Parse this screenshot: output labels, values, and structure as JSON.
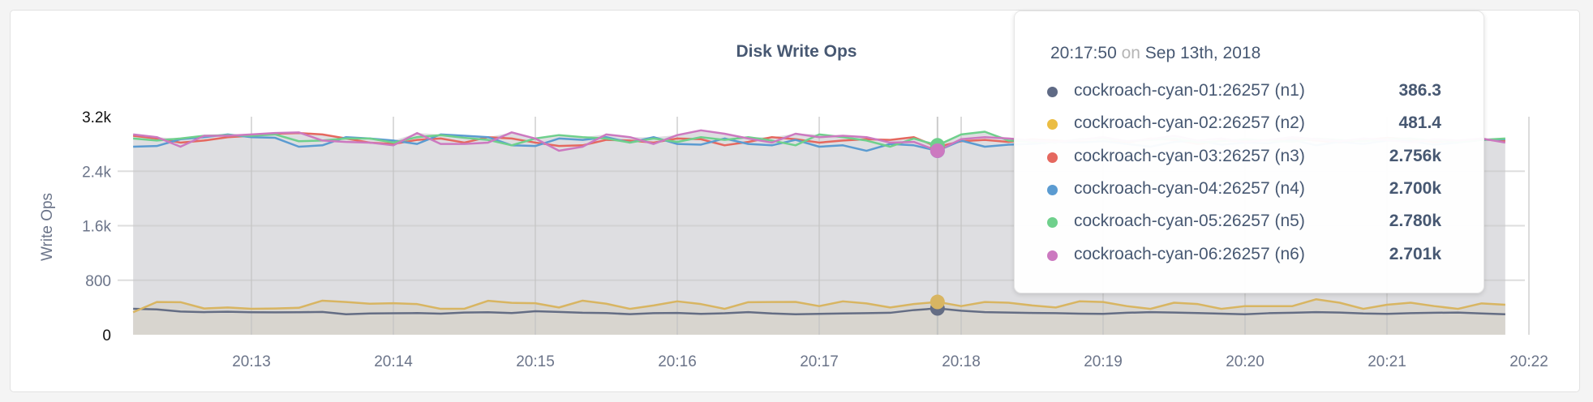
{
  "chart_data": {
    "type": "line",
    "title": "Disk Write Ops",
    "ylabel": "Write Ops",
    "ylim": [
      0,
      3200
    ],
    "yticks": [
      "0",
      "800",
      "1.6k",
      "2.4k",
      "3.2k"
    ],
    "ytick_values": [
      0,
      800,
      1600,
      2400,
      3200
    ],
    "xticks": [
      "20:13",
      "20:14",
      "20:15",
      "20:16",
      "20:17",
      "20:18",
      "20:19",
      "20:20",
      "20:21",
      "20:22"
    ],
    "grid": true,
    "x": [
      "20:12:10",
      "20:12:20",
      "20:12:30",
      "20:12:40",
      "20:12:50",
      "20:13:00",
      "20:13:10",
      "20:13:20",
      "20:13:30",
      "20:13:40",
      "20:13:50",
      "20:14:00",
      "20:14:10",
      "20:14:20",
      "20:14:30",
      "20:14:40",
      "20:14:50",
      "20:15:00",
      "20:15:10",
      "20:15:20",
      "20:15:30",
      "20:15:40",
      "20:15:50",
      "20:16:00",
      "20:16:10",
      "20:16:20",
      "20:16:30",
      "20:16:40",
      "20:16:50",
      "20:17:00",
      "20:17:10",
      "20:17:20",
      "20:17:30",
      "20:17:40",
      "20:17:50",
      "20:18:00",
      "20:18:10",
      "20:18:20",
      "20:18:30",
      "20:18:40",
      "20:18:50",
      "20:19:00",
      "20:19:10",
      "20:19:20",
      "20:19:30",
      "20:19:40",
      "20:19:50",
      "20:20:00",
      "20:20:10",
      "20:20:20",
      "20:20:30",
      "20:20:40",
      "20:20:50",
      "20:21:00",
      "20:21:10",
      "20:21:20",
      "20:21:30",
      "20:21:40",
      "20:21:50"
    ],
    "series": [
      {
        "name": "cockroach-cyan-01:26257 (n1)",
        "color": "#646d84",
        "values": [
          380,
          372,
          340,
          332,
          338,
          330,
          328,
          330,
          335,
          300,
          312,
          315,
          318,
          310,
          325,
          330,
          318,
          345,
          335,
          322,
          318,
          302,
          316,
          320,
          306,
          315,
          332,
          312,
          300,
          306,
          312,
          316,
          322,
          362,
          386.3,
          352,
          332,
          326,
          320,
          316,
          310,
          306,
          322,
          332,
          326,
          318,
          310,
          300,
          316,
          322,
          332,
          326,
          312,
          306,
          316,
          322,
          326,
          312,
          300
        ]
      },
      {
        "name": "cockroach-cyan-02:26257 (n2)",
        "color": "#d8b562",
        "values": [
          330,
          480,
          478,
          385,
          400,
          380,
          385,
          395,
          500,
          480,
          455,
          462,
          450,
          380,
          382,
          498,
          468,
          462,
          400,
          500,
          455,
          380,
          430,
          490,
          450,
          380,
          478,
          480,
          482,
          420,
          490,
          460,
          400,
          450,
          481.4,
          420,
          480,
          470,
          430,
          400,
          490,
          480,
          420,
          380,
          470,
          450,
          380,
          420,
          420,
          420,
          520,
          470,
          380,
          440,
          470,
          420,
          380,
          460,
          440
        ]
      },
      {
        "name": "cockroach-cyan-03:26257 (n3)",
        "color": "#e5685f",
        "values": [
          2920,
          2880,
          2820,
          2850,
          2900,
          2920,
          2950,
          2960,
          2940,
          2880,
          2820,
          2800,
          2860,
          2880,
          2820,
          2900,
          2880,
          2820,
          2770,
          2780,
          2860,
          2850,
          2820,
          2880,
          2870,
          2780,
          2830,
          2900,
          2870,
          2820,
          2850,
          2870,
          2860,
          2900,
          2756,
          2840,
          2860,
          2830,
          2870,
          2850,
          2830,
          2840,
          2820,
          2880,
          2860,
          2800,
          2850,
          2840,
          2860,
          2880,
          2850,
          2820,
          2860,
          2890,
          2870,
          2830,
          2850,
          2870,
          2840
        ]
      },
      {
        "name": "cockroach-cyan-04:26257 (n4)",
        "color": "#5b9bd1",
        "values": [
          2760,
          2770,
          2870,
          2900,
          2940,
          2900,
          2890,
          2760,
          2780,
          2900,
          2880,
          2850,
          2800,
          2940,
          2920,
          2900,
          2780,
          2770,
          2880,
          2860,
          2900,
          2820,
          2900,
          2800,
          2790,
          2880,
          2800,
          2780,
          2860,
          2760,
          2780,
          2700,
          2800,
          2780,
          2700,
          2850,
          2760,
          2790,
          2800,
          2830,
          2820,
          2840,
          2800,
          2760,
          2830,
          2850,
          2790,
          2820,
          2810,
          2860,
          2780,
          2830,
          2800,
          2850,
          2840,
          2790,
          2820,
          2860,
          2870
        ]
      },
      {
        "name": "cockroach-cyan-05:26257 (n5)",
        "color": "#6fd08c",
        "values": [
          2880,
          2850,
          2880,
          2920,
          2930,
          2920,
          2940,
          2840,
          2850,
          2880,
          2880,
          2820,
          2900,
          2930,
          2890,
          2860,
          2780,
          2880,
          2930,
          2900,
          2880,
          2820,
          2880,
          2830,
          2900,
          2860,
          2900,
          2850,
          2780,
          2940,
          2900,
          2850,
          2760,
          2880,
          2780,
          2940,
          2980,
          2850,
          2830,
          2820,
          2870,
          2880,
          2840,
          2860,
          2880,
          2820,
          2840,
          2870,
          2850,
          2830,
          2880,
          2860,
          2840,
          2870,
          2880,
          2850,
          2830,
          2860,
          2880
        ]
      },
      {
        "name": "cockroach-cyan-06:26257 (n6)",
        "color": "#cc79c0",
        "values": [
          2940,
          2900,
          2760,
          2920,
          2920,
          2940,
          2960,
          2970,
          2850,
          2830,
          2820,
          2780,
          2960,
          2800,
          2800,
          2820,
          2970,
          2880,
          2700,
          2760,
          2940,
          2900,
          2800,
          2930,
          3000,
          2950,
          2880,
          2820,
          2950,
          2900,
          2920,
          2900,
          2820,
          2830,
          2701,
          2870,
          2900,
          2880,
          2850,
          2830,
          2860,
          2900,
          2840,
          2870,
          2920,
          2850,
          2880,
          2830,
          2860,
          2900,
          2870,
          2840,
          2880,
          2860,
          2820,
          2870,
          2850,
          2880,
          2820
        ]
      }
    ],
    "hover_x": "20:17:50"
  },
  "tooltip": {
    "time": "20:17:50",
    "on": "on",
    "date": "Sep 13th, 2018",
    "rows": [
      {
        "name": "cockroach-cyan-01:26257 (n1)",
        "value": "386.3",
        "color": "#5f6a85"
      },
      {
        "name": "cockroach-cyan-02:26257 (n2)",
        "value": "481.4",
        "color": "#ebbd43"
      },
      {
        "name": "cockroach-cyan-03:26257 (n3)",
        "value": "2.756k",
        "color": "#e5685f"
      },
      {
        "name": "cockroach-cyan-04:26257 (n4)",
        "value": "2.700k",
        "color": "#5b9bd1"
      },
      {
        "name": "cockroach-cyan-05:26257 (n5)",
        "value": "2.780k",
        "color": "#6fd08c"
      },
      {
        "name": "cockroach-cyan-06:26257 (n6)",
        "value": "2.701k",
        "color": "#cc79c0"
      }
    ]
  }
}
